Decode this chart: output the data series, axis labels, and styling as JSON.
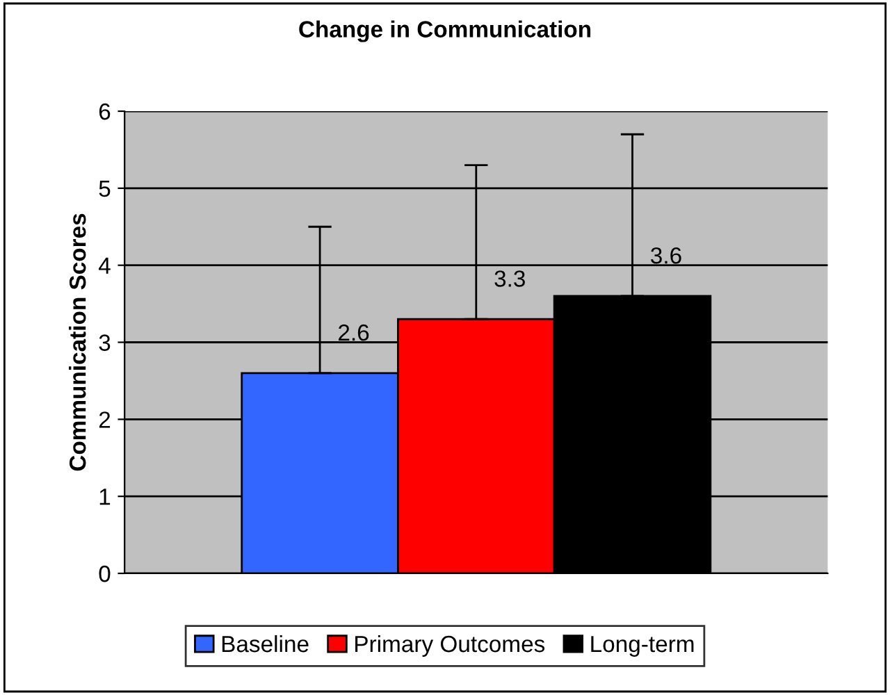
{
  "chart_data": {
    "type": "bar",
    "title": "Change in Communication",
    "ylabel": "Communication Scores",
    "categories": [
      null
    ],
    "series": [
      {
        "name": "Baseline",
        "color": "#3366ff",
        "values": [
          2.6
        ],
        "errors": [
          [
            2.6,
            4.5
          ]
        ]
      },
      {
        "name": "Primary Outcomes",
        "color": "#ff0000",
        "values": [
          3.3
        ],
        "errors": [
          [
            3.3,
            5.3
          ]
        ]
      },
      {
        "name": "Long-term",
        "color": "#000000",
        "values": [
          3.6
        ],
        "errors": [
          [
            3.6,
            5.7
          ]
        ]
      }
    ],
    "ylim": [
      0,
      6
    ],
    "yticks": [
      0,
      1,
      2,
      3,
      4,
      5,
      6
    ],
    "grid": "y",
    "legend": "bottom",
    "data_labels": true
  }
}
